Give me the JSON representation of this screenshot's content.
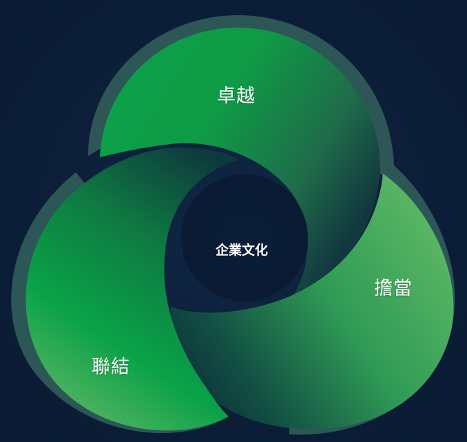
{
  "center": {
    "label": "企業文化"
  },
  "petals": [
    {
      "id": "top",
      "label": "卓越"
    },
    {
      "id": "right",
      "label": "擔當"
    },
    {
      "id": "left",
      "label": "聯結"
    }
  ],
  "colors": {
    "background": "#0c1f3a",
    "center": "#0a1b35",
    "petal_bright": "#09a347",
    "petal_light": "#58b563",
    "petal_dark": "#0d3a3a",
    "rim": "#3a6a66"
  }
}
